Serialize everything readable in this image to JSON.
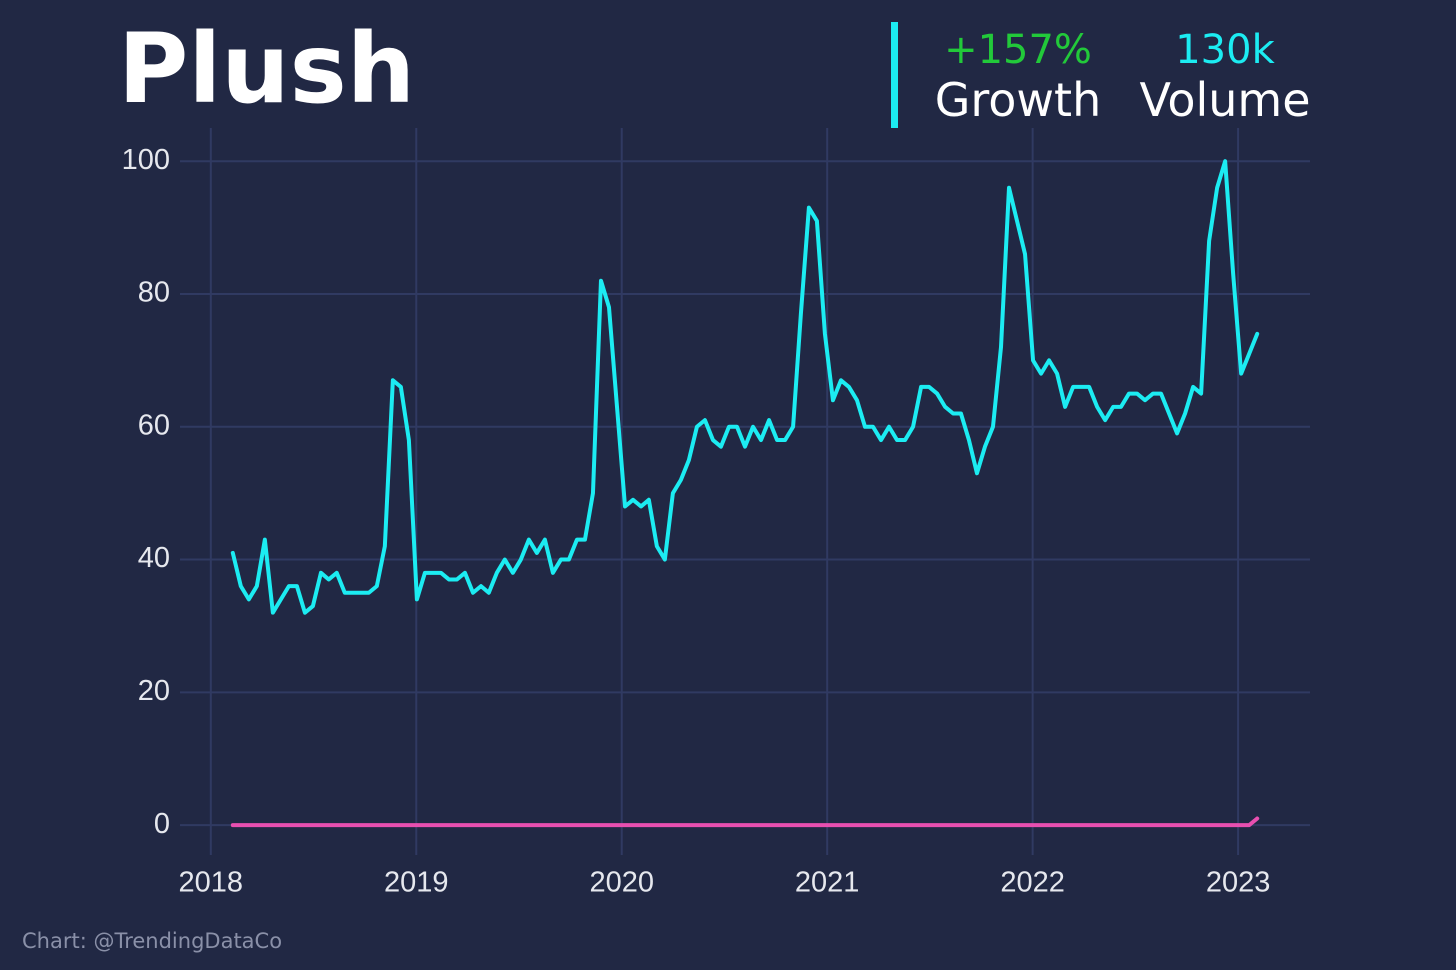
{
  "header": {
    "title": "Plush",
    "growth": "+157%",
    "growth_label": "Growth",
    "volume": "130k",
    "volume_label": "Volume"
  },
  "footer": "Chart: @TrendingDataCo",
  "chart_data": {
    "type": "line",
    "x": [
      2018.107,
      2018.146,
      2018.185,
      2018.224,
      2018.263,
      2018.302,
      2018.341,
      2018.38,
      2018.419,
      2018.458,
      2018.497,
      2018.536,
      2018.574,
      2018.613,
      2018.652,
      2018.691,
      2018.73,
      2018.769,
      2018.808,
      2018.847,
      2018.886,
      2018.925,
      2018.964,
      2019.003,
      2019.042,
      2019.081,
      2019.12,
      2019.159,
      2019.198,
      2019.237,
      2019.276,
      2019.315,
      2019.353,
      2019.392,
      2019.431,
      2019.47,
      2019.509,
      2019.548,
      2019.587,
      2019.626,
      2019.665,
      2019.704,
      2019.743,
      2019.782,
      2019.821,
      2019.86,
      2019.899,
      2019.938,
      2019.977,
      2020.016,
      2020.055,
      2020.094,
      2020.132,
      2020.171,
      2020.21,
      2020.249,
      2020.288,
      2020.327,
      2020.366,
      2020.405,
      2020.444,
      2020.483,
      2020.522,
      2020.561,
      2020.6,
      2020.639,
      2020.678,
      2020.717,
      2020.756,
      2020.795,
      2020.834,
      2020.872,
      2020.911,
      2020.95,
      2020.989,
      2021.028,
      2021.067,
      2021.106,
      2021.145,
      2021.184,
      2021.223,
      2021.262,
      2021.301,
      2021.34,
      2021.379,
      2021.418,
      2021.457,
      2021.496,
      2021.535,
      2021.574,
      2021.613,
      2021.651,
      2021.69,
      2021.729,
      2021.768,
      2021.807,
      2021.846,
      2021.885,
      2021.924,
      2021.963,
      2022.002,
      2022.041,
      2022.08,
      2022.119,
      2022.158,
      2022.197,
      2022.236,
      2022.275,
      2022.314,
      2022.353,
      2022.392,
      2022.43,
      2022.469,
      2022.508,
      2022.547,
      2022.586,
      2022.625,
      2022.664,
      2022.703,
      2022.742,
      2022.781,
      2022.82,
      2022.859,
      2022.898,
      2022.937,
      2022.976,
      2023.015,
      2023.054,
      2023.093
    ],
    "series": [
      {
        "color": "#1cecf2",
        "values": [
          41,
          36,
          34,
          36,
          43,
          32,
          34,
          36,
          36,
          32,
          33,
          38,
          37,
          38,
          35,
          35,
          35,
          35,
          36,
          42,
          67,
          66,
          58,
          34,
          38,
          38,
          38,
          37,
          37,
          38,
          35,
          36,
          35,
          38,
          40,
          38,
          40,
          43,
          41,
          43,
          38,
          40,
          40,
          43,
          43,
          50,
          82,
          78,
          63,
          48,
          49,
          48,
          49,
          42,
          40,
          50,
          52,
          55,
          60,
          61,
          58,
          57,
          60,
          60,
          57,
          60,
          58,
          61,
          58,
          58,
          60,
          77,
          93,
          91,
          74,
          64,
          67,
          66,
          64,
          60,
          60,
          58,
          60,
          58,
          58,
          60,
          66,
          66,
          65,
          63,
          62,
          62,
          58,
          53,
          57,
          60,
          72,
          96,
          91,
          86,
          70,
          68,
          70,
          68,
          63,
          66,
          66,
          66,
          63,
          61,
          63,
          63,
          65,
          65,
          64,
          65,
          65,
          62,
          59,
          62,
          66,
          65,
          88,
          96,
          100,
          83,
          68,
          71,
          74
        ]
      },
      {
        "color": "#e84fb0",
        "values": [
          0,
          0,
          0,
          0,
          0,
          0,
          0,
          0,
          0,
          0,
          0,
          0,
          0,
          0,
          0,
          0,
          0,
          0,
          0,
          0,
          0,
          0,
          0,
          0,
          0,
          0,
          0,
          0,
          0,
          0,
          0,
          0,
          0,
          0,
          0,
          0,
          0,
          0,
          0,
          0,
          0,
          0,
          0,
          0,
          0,
          0,
          0,
          0,
          0,
          0,
          0,
          0,
          0,
          0,
          0,
          0,
          0,
          0,
          0,
          0,
          0,
          0,
          0,
          0,
          0,
          0,
          0,
          0,
          0,
          0,
          0,
          0,
          0,
          0,
          0,
          0,
          0,
          0,
          0,
          0,
          0,
          0,
          0,
          0,
          0,
          0,
          0,
          0,
          0,
          0,
          0,
          0,
          0,
          0,
          0,
          0,
          0,
          0,
          0,
          0,
          0,
          0,
          0,
          0,
          0,
          0,
          0,
          0,
          0,
          0,
          0,
          0,
          0,
          0,
          0,
          0,
          0,
          0,
          0,
          0,
          0,
          0,
          0,
          0,
          0,
          0,
          0,
          0,
          1
        ]
      }
    ],
    "xlim": [
      2017.85,
      2023.35
    ],
    "xticks": [
      2018,
      2019,
      2020,
      2021,
      2022,
      2023
    ],
    "ylim": [
      -4.5,
      105
    ],
    "yticks": [
      0,
      20,
      40,
      60,
      80,
      100
    ],
    "grid": true
  }
}
